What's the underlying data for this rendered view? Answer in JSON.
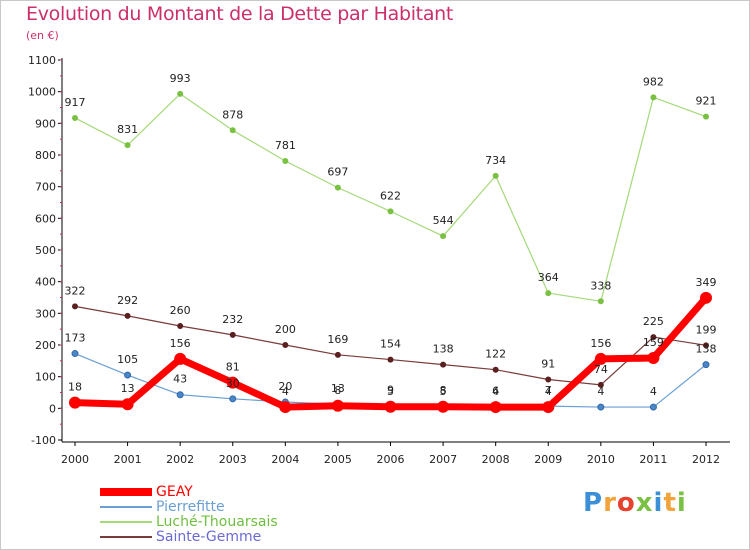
{
  "title": "Evolution du Montant de la Dette par Habitant",
  "subtitle": "(en €)",
  "logo_text": "Proxiti",
  "colors": {
    "title": "#cc2f6b",
    "GEAY": "#ff0000",
    "Pierrefitte": "#6a9fd4",
    "Luché-Thouarsais": "#a4d97a",
    "Sainte-Gemme": "#7a3b3b",
    "grid_axis": "#000000"
  },
  "chart_data": {
    "type": "line",
    "title": "Evolution du Montant de la Dette par Habitant",
    "subtitle": "(en €)",
    "xlabel": "",
    "ylabel": "",
    "x": [
      "2000",
      "2001",
      "2002",
      "2003",
      "2004",
      "2005",
      "2006",
      "2007",
      "2008",
      "2009",
      "2010",
      "2011",
      "2012"
    ],
    "ylim": [
      -100,
      1100
    ],
    "yticks": [
      -100,
      0,
      100,
      200,
      300,
      400,
      500,
      600,
      700,
      800,
      900,
      1000,
      1100
    ],
    "grid": false,
    "legend_position": "bottom-left",
    "series": [
      {
        "name": "GEAY",
        "color": "#ff0000",
        "values": [
          18,
          13,
          156,
          81,
          4,
          8,
          5,
          5,
          4,
          4,
          156,
          159,
          349
        ],
        "labels": [
          "18",
          "13",
          "156",
          "81",
          "4",
          "8",
          "5",
          "5",
          "4",
          "4",
          "156",
          "159",
          "349"
        ]
      },
      {
        "name": "Pierrefitte",
        "color": "#6a9fd4",
        "values": [
          173,
          105,
          43,
          30,
          20,
          13,
          9,
          8,
          6,
          7,
          4,
          4,
          138
        ],
        "labels": [
          "173",
          "105",
          "43",
          "30",
          "20",
          "13",
          "9",
          "8",
          "6",
          "7",
          "4",
          "4",
          "138"
        ]
      },
      {
        "name": "Luché-Thouarsais",
        "color": "#a4d97a",
        "values": [
          917,
          831,
          993,
          878,
          781,
          697,
          622,
          544,
          734,
          364,
          338,
          982,
          921
        ],
        "labels": [
          "917",
          "831",
          "993",
          "878",
          "781",
          "697",
          "622",
          "544",
          "734",
          "364",
          "338",
          "982",
          "921"
        ]
      },
      {
        "name": "Sainte-Gemme",
        "color": "#7a3b3b",
        "values": [
          322,
          292,
          260,
          232,
          200,
          169,
          154,
          138,
          122,
          91,
          74,
          225,
          199
        ],
        "labels": [
          "322",
          "292",
          "260",
          "232",
          "200",
          "169",
          "154",
          "138",
          "122",
          "91",
          "74",
          "225",
          "199"
        ]
      }
    ]
  },
  "legend": [
    {
      "label": "GEAY",
      "color": "#ff0000"
    },
    {
      "label": "Pierrefitte",
      "color": "#6a9fd4"
    },
    {
      "label": "Luché-Thouarsais",
      "color": "#a4d97a"
    },
    {
      "label": "Sainte-Gemme",
      "color": "#7a3b3b"
    }
  ]
}
